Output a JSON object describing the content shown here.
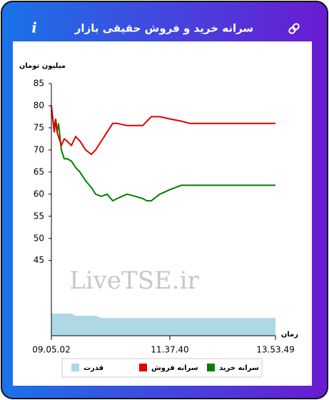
{
  "header": {
    "title": "سرانه خرید و فروش حقیقی بازار",
    "info_icon": "i"
  },
  "chart_data": {
    "type": "line",
    "y_label": "میلیون تومان",
    "x_label": "زمان",
    "watermark": "LiveTSE.ir",
    "x": [
      32702,
      32923,
      33033,
      33143,
      33253,
      33475,
      33695,
      33916,
      34247,
      34578,
      34909,
      35351,
      35792,
      36123,
      36565,
      37006,
      37448,
      37779,
      38551,
      39213,
      39765,
      40096,
      40427,
      41089,
      41862,
      42745,
      43407,
      44290,
      46387,
      50029
    ],
    "xlim": [
      32702,
      50029
    ],
    "xticks": [
      {
        "value": 32702,
        "label": "09.05.02"
      },
      {
        "value": 41860,
        "label": "11.37.40"
      },
      {
        "value": 50029,
        "label": "13.53.49"
      }
    ],
    "ylim": [
      28,
      85
    ],
    "yticks": [
      45,
      50,
      55,
      60,
      65,
      70,
      75,
      80,
      85
    ],
    "grid": false,
    "series": [
      {
        "name": "سرانه خرید",
        "color": "#008000",
        "kind": "line",
        "values": [
          79,
          75,
          77,
          74,
          76,
          70,
          68,
          68,
          67.5,
          66,
          65,
          63,
          61.5,
          60,
          59.5,
          60,
          58.5,
          59,
          60,
          59.5,
          59,
          58.5,
          58.5,
          60,
          61,
          62,
          62,
          62,
          62,
          62
        ]
      },
      {
        "name": "سرانه فروش",
        "color": "#e00000",
        "kind": "line",
        "values": [
          80,
          74,
          77,
          74,
          73,
          71,
          72.5,
          72,
          71,
          73,
          72,
          70,
          69,
          70,
          72,
          74,
          76,
          76,
          75.5,
          75.5,
          75.5,
          76.5,
          77.5,
          77.5,
          77,
          76.5,
          76,
          76,
          76,
          76
        ]
      },
      {
        "name": "قدرت",
        "color": "#add8e6",
        "kind": "area",
        "values": [
          33,
          33,
          33,
          33,
          33,
          33,
          33,
          33,
          33,
          32.5,
          32.5,
          32.5,
          32.5,
          32.5,
          32,
          32,
          32,
          32,
          32,
          32,
          32,
          32,
          32,
          32,
          32,
          32,
          32,
          32,
          32,
          32
        ]
      }
    ]
  }
}
